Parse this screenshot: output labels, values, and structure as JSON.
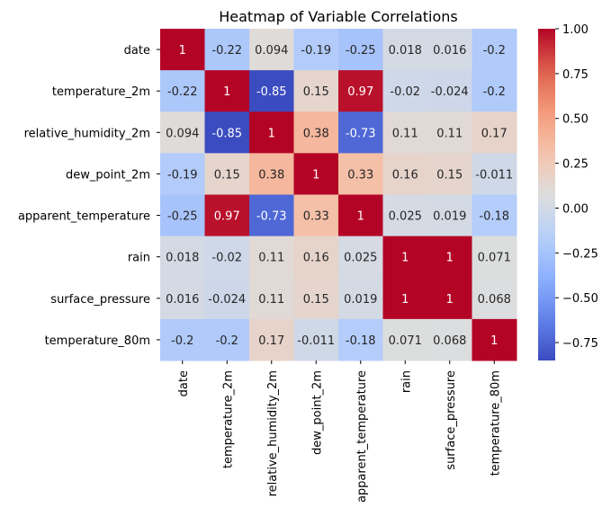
{
  "chart_data": {
    "type": "heatmap",
    "title": "Heatmap of Variable Correlations",
    "variables": [
      "date",
      "temperature_2m",
      "relative_humidity_2m",
      "dew_point_2m",
      "apparent_temperature",
      "rain",
      "surface_pressure",
      "temperature_80m"
    ],
    "values": [
      [
        1,
        -0.22,
        0.094,
        -0.19,
        -0.25,
        0.018,
        0.016,
        -0.2
      ],
      [
        -0.22,
        1,
        -0.85,
        0.15,
        0.97,
        -0.02,
        -0.024,
        -0.2
      ],
      [
        0.094,
        -0.85,
        1,
        0.38,
        -0.73,
        0.11,
        0.11,
        0.17
      ],
      [
        -0.19,
        0.15,
        0.38,
        1,
        0.33,
        0.16,
        0.15,
        -0.011
      ],
      [
        -0.25,
        0.97,
        -0.73,
        0.33,
        1,
        0.025,
        0.019,
        -0.18
      ],
      [
        0.018,
        -0.02,
        0.11,
        0.16,
        0.025,
        1,
        1,
        0.071
      ],
      [
        0.016,
        -0.024,
        0.11,
        0.15,
        0.019,
        1,
        1,
        0.068
      ],
      [
        -0.2,
        -0.2,
        0.17,
        -0.011,
        -0.18,
        0.071,
        0.068,
        1
      ]
    ],
    "labels": [
      [
        "1",
        "-0.22",
        "0.094",
        "-0.19",
        "-0.25",
        "0.018",
        "0.016",
        "-0.2"
      ],
      [
        "-0.22",
        "1",
        "-0.85",
        "0.15",
        "0.97",
        "-0.02",
        "-0.024",
        "-0.2"
      ],
      [
        "0.094",
        "-0.85",
        "1",
        "0.38",
        "-0.73",
        "0.11",
        "0.11",
        "0.17"
      ],
      [
        "-0.19",
        "0.15",
        "0.38",
        "1",
        "0.33",
        "0.16",
        "0.15",
        "-0.011"
      ],
      [
        "-0.25",
        "0.97",
        "-0.73",
        "0.33",
        "1",
        "0.025",
        "0.019",
        "-0.18"
      ],
      [
        "0.018",
        "-0.02",
        "0.11",
        "0.16",
        "0.025",
        "1",
        "1",
        "0.071"
      ],
      [
        "0.016",
        "-0.024",
        "0.11",
        "0.15",
        "0.019",
        "1",
        "1",
        "0.068"
      ],
      [
        "-0.2",
        "-0.2",
        "0.17",
        "-0.011",
        "-0.18",
        "0.071",
        "0.068",
        "1"
      ]
    ],
    "colormap": "coolwarm",
    "color_range": [
      -0.85,
      1
    ],
    "colorbar_ticks": [
      1.0,
      0.75,
      0.5,
      0.25,
      0.0,
      -0.25,
      -0.5,
      -0.75
    ],
    "colorbar_tick_labels": [
      "1.00",
      "0.75",
      "0.50",
      "0.25",
      "0.00",
      "−0.25",
      "−0.50",
      "−0.75"
    ],
    "colorbar_position": "right",
    "grid": false
  }
}
